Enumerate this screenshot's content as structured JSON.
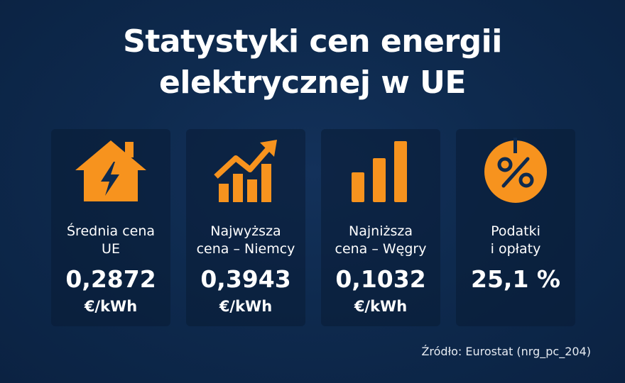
{
  "title": {
    "line1": "Statystyki cen energii",
    "line2": "elektrycznej w UE"
  },
  "accent_color": "#f7931e",
  "cards": [
    {
      "icon": "house-lightning-icon",
      "label_line1": "Średnia cena",
      "label_line2": "UE",
      "value": "0,2872",
      "unit": "€/kWh"
    },
    {
      "icon": "chart-up-arrow-icon",
      "label_line1": "Najwyższa",
      "label_line2": "cena – Niemcy",
      "value": "0,3943",
      "unit": "€/kWh"
    },
    {
      "icon": "bar-chart-icon",
      "label_line1": "Najniższa",
      "label_line2": "cena – Węgry",
      "value": "0,1032",
      "unit": "€/kWh"
    },
    {
      "icon": "percent-circle-icon",
      "label_line1": "Podatki",
      "label_line2": "i opłaty",
      "value": "25,1 %",
      "unit": ""
    }
  ],
  "source": "Źródło: Eurostat (nrg_pc_204)"
}
